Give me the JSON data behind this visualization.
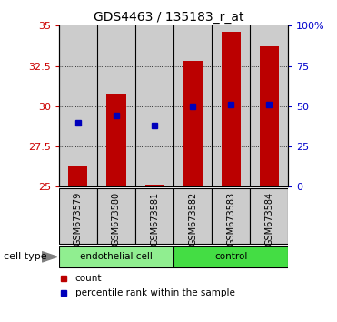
{
  "title": "GDS4463 / 135183_r_at",
  "samples": [
    "GSM673579",
    "GSM673580",
    "GSM673581",
    "GSM673582",
    "GSM673583",
    "GSM673584"
  ],
  "red_values": [
    26.3,
    30.8,
    25.15,
    32.8,
    34.6,
    33.7
  ],
  "blue_values": [
    29.0,
    29.4,
    28.8,
    30.0,
    30.1,
    30.1
  ],
  "ylim": [
    25,
    35
  ],
  "yticks_left": [
    25,
    27.5,
    30,
    32.5,
    35
  ],
  "yticks_right": [
    0,
    25,
    50,
    75,
    100
  ],
  "ytick_labels_right": [
    "0",
    "25",
    "50",
    "75",
    "100%"
  ],
  "groups": [
    {
      "label": "endothelial cell",
      "n": 3,
      "color": "#90EE90"
    },
    {
      "label": "control",
      "n": 3,
      "color": "#44DD44"
    }
  ],
  "cell_type_label": "cell type",
  "legend_red": "count",
  "legend_blue": "percentile rank within the sample",
  "bar_color": "#BB0000",
  "dot_color": "#0000BB",
  "left_axis_color": "#CC0000",
  "right_axis_color": "#0000CC",
  "bar_width": 0.5,
  "bar_bottom": 25.0,
  "grid_yticks": [
    27.5,
    30.0,
    32.5
  ],
  "sample_bg_color": "#cccccc",
  "plot_bg_color": "#ffffff"
}
